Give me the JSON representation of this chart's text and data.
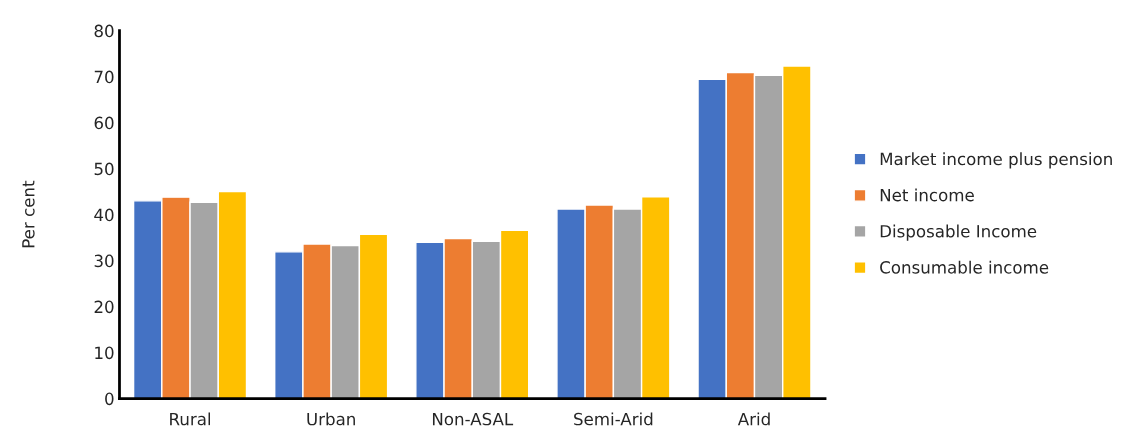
{
  "chart_data": {
    "type": "bar",
    "ylabel": "Per cent",
    "categories": [
      "Rural",
      "Urban",
      "Non-ASAL",
      "Semi-Arid",
      "Arid"
    ],
    "series": [
      {
        "name": "Market income plus pension",
        "color": "#4472c4",
        "values": [
          43.0,
          31.9,
          34.0,
          41.2,
          69.4
        ]
      },
      {
        "name": "Net income",
        "color": "#ed7d31",
        "values": [
          43.8,
          33.6,
          34.8,
          42.1,
          70.9
        ]
      },
      {
        "name": "Disposable Income",
        "color": "#a5a5a5",
        "values": [
          42.7,
          33.3,
          34.2,
          41.2,
          70.3
        ]
      },
      {
        "name": "Consumable income",
        "color": "#ffc000",
        "values": [
          45.0,
          35.7,
          36.6,
          43.9,
          72.3
        ]
      }
    ],
    "ylim": [
      0,
      80
    ],
    "yticks": [
      0,
      10,
      20,
      30,
      40,
      50,
      60,
      70,
      80
    ],
    "grid": false,
    "legend": "right"
  }
}
